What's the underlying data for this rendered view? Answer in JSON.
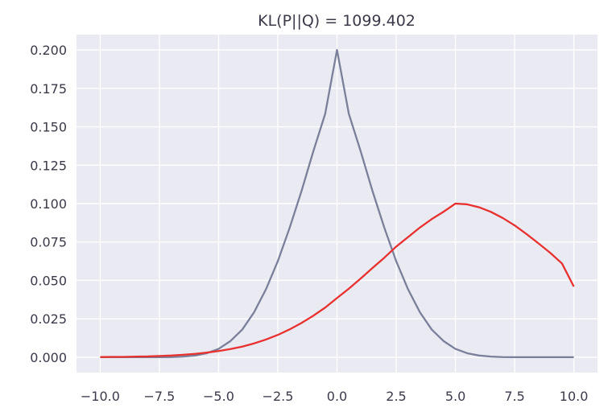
{
  "chart_data": {
    "type": "line",
    "title": "KL(P||Q) = 1099.402",
    "xlabel": "",
    "ylabel": "",
    "xlim": [
      -11.0,
      11.0
    ],
    "ylim": [
      -0.01,
      0.21
    ],
    "x_ticks": [
      -10.0,
      -7.5,
      -5.0,
      -2.5,
      0.0,
      2.5,
      5.0,
      7.5,
      10.0
    ],
    "x_tick_labels": [
      "−10.0",
      "−7.5",
      "−5.0",
      "−2.5",
      "0.0",
      "2.5",
      "5.0",
      "7.5",
      "10.0"
    ],
    "y_ticks": [
      0.0,
      0.025,
      0.05,
      0.075,
      0.1,
      0.125,
      0.15,
      0.175,
      0.2
    ],
    "y_tick_labels": [
      "0.000",
      "0.025",
      "0.050",
      "0.075",
      "0.100",
      "0.125",
      "0.150",
      "0.175",
      "0.200"
    ],
    "grid": true,
    "background_color": "#eaeaf2",
    "grid_color": "#ffffff",
    "x": [
      -10,
      -9.5,
      -9,
      -8.5,
      -8,
      -7.5,
      -7,
      -6.5,
      -6,
      -5.5,
      -5,
      -4.5,
      -4,
      -3.5,
      -3,
      -2.5,
      -2,
      -1.5,
      -1,
      -0.5,
      0,
      0.5,
      1,
      1.5,
      2,
      2.5,
      3,
      3.5,
      4,
      4.5,
      5,
      5.5,
      6,
      6.5,
      7,
      7.5,
      8,
      8.5,
      9,
      9.5,
      10
    ],
    "series": [
      {
        "color": "#7a7f9a",
        "values": [
          0.0,
          0.0,
          0.0,
          0.0,
          0.0,
          0.0,
          0.0001,
          0.0004,
          0.0011,
          0.0026,
          0.0054,
          0.0105,
          0.018,
          0.0293,
          0.0442,
          0.0625,
          0.0842,
          0.1081,
          0.134,
          0.1584,
          0.2,
          0.1584,
          0.134,
          0.1081,
          0.0842,
          0.0625,
          0.0442,
          0.0293,
          0.018,
          0.0105,
          0.0054,
          0.0026,
          0.0011,
          0.0004,
          0.0001,
          0.0,
          0.0,
          0.0,
          0.0,
          0.0,
          0.0
        ]
      },
      {
        "color": "#e8312f",
        "values": [
          0.0001,
          0.0002,
          0.0002,
          0.0004,
          0.0005,
          0.0008,
          0.0011,
          0.0016,
          0.0022,
          0.003,
          0.004,
          0.0053,
          0.0069,
          0.009,
          0.0115,
          0.0145,
          0.0181,
          0.0223,
          0.027,
          0.0323,
          0.0385,
          0.0446,
          0.0512,
          0.0581,
          0.0648,
          0.072,
          0.0782,
          0.0844,
          0.0899,
          0.0947,
          0.1,
          0.0995,
          0.0976,
          0.0946,
          0.0906,
          0.0858,
          0.0802,
          0.0742,
          0.068,
          0.061,
          0.046
        ]
      }
    ]
  }
}
